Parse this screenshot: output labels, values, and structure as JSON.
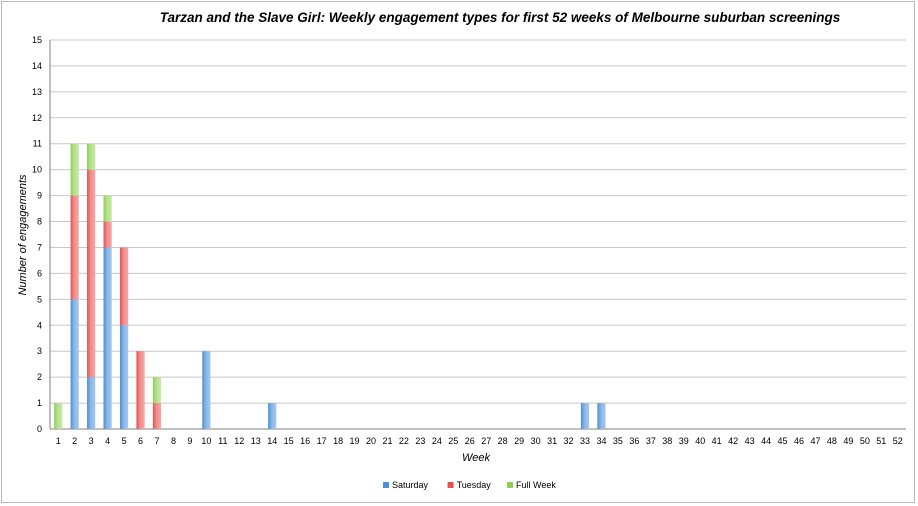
{
  "chart_data": {
    "type": "bar",
    "stacked": true,
    "title": "Tarzan and the Slave Girl: Weekly engagement types for first 52 weeks of Melbourne suburban screenings",
    "xlabel": "Week",
    "ylabel": "Number of engagements",
    "ylim": [
      0,
      15
    ],
    "y_ticks": [
      0,
      1,
      2,
      3,
      4,
      5,
      6,
      7,
      8,
      9,
      10,
      11,
      12,
      13,
      14,
      15
    ],
    "grid": true,
    "legend_position": "bottom-center",
    "categories": [
      "1",
      "2",
      "3",
      "4",
      "5",
      "6",
      "7",
      "8",
      "9",
      "10",
      "11",
      "12",
      "13",
      "14",
      "15",
      "16",
      "17",
      "18",
      "19",
      "20",
      "21",
      "22",
      "23",
      "24",
      "25",
      "26",
      "27",
      "28",
      "29",
      "30",
      "31",
      "32",
      "33",
      "34",
      "35",
      "36",
      "37",
      "38",
      "39",
      "40",
      "41",
      "42",
      "43",
      "44",
      "45",
      "46",
      "47",
      "48",
      "49",
      "50",
      "51",
      "52"
    ],
    "series": [
      {
        "name": "Saturday",
        "color": "#4a90d9",
        "values": [
          0,
          5,
          2,
          7,
          4,
          0,
          0,
          0,
          0,
          3,
          0,
          0,
          0,
          1,
          0,
          0,
          0,
          0,
          0,
          0,
          0,
          0,
          0,
          0,
          0,
          0,
          0,
          0,
          0,
          0,
          0,
          0,
          1,
          1,
          0,
          0,
          0,
          0,
          0,
          0,
          0,
          0,
          0,
          0,
          0,
          0,
          0,
          0,
          0,
          0,
          0,
          0
        ]
      },
      {
        "name": "Tuesday",
        "color": "#e8514f",
        "values": [
          0,
          4,
          8,
          1,
          3,
          3,
          1,
          0,
          0,
          0,
          0,
          0,
          0,
          0,
          0,
          0,
          0,
          0,
          0,
          0,
          0,
          0,
          0,
          0,
          0,
          0,
          0,
          0,
          0,
          0,
          0,
          0,
          0,
          0,
          0,
          0,
          0,
          0,
          0,
          0,
          0,
          0,
          0,
          0,
          0,
          0,
          0,
          0,
          0,
          0,
          0,
          0
        ]
      },
      {
        "name": "Full Week",
        "color": "#8fd14f",
        "values": [
          1,
          2,
          1,
          1,
          0,
          0,
          1,
          0,
          0,
          0,
          0,
          0,
          0,
          0,
          0,
          0,
          0,
          0,
          0,
          0,
          0,
          0,
          0,
          0,
          0,
          0,
          0,
          0,
          0,
          0,
          0,
          0,
          0,
          0,
          0,
          0,
          0,
          0,
          0,
          0,
          0,
          0,
          0,
          0,
          0,
          0,
          0,
          0,
          0,
          0,
          0,
          0
        ]
      }
    ]
  }
}
